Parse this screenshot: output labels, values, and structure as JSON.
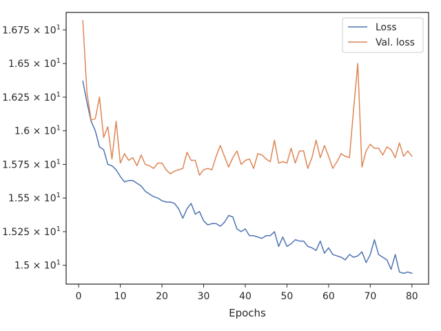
{
  "chart_data": {
    "type": "line",
    "title": "",
    "xlabel": "Epochs",
    "ylabel": "",
    "xlim": [
      -3,
      84
    ],
    "ylim": [
      14.86,
      16.88
    ],
    "x_ticks": [
      0,
      10,
      20,
      30,
      40,
      50,
      60,
      70,
      80
    ],
    "x_tick_labels": [
      "0",
      "10",
      "20",
      "30",
      "40",
      "50",
      "60",
      "70",
      "80"
    ],
    "y_ticks": [
      15.0,
      15.25,
      15.5,
      15.75,
      16.0,
      16.25,
      16.5,
      16.75
    ],
    "y_tick_labels": [
      {
        "mantissa": "1.5",
        "base": "10",
        "exp": "1"
      },
      {
        "mantissa": "1.525",
        "base": "10",
        "exp": "1"
      },
      {
        "mantissa": "1.55",
        "base": "10",
        "exp": "1"
      },
      {
        "mantissa": "1.575",
        "base": "10",
        "exp": "1"
      },
      {
        "mantissa": "1.6",
        "base": "10",
        "exp": "1"
      },
      {
        "mantissa": "1.625",
        "base": "10",
        "exp": "1"
      },
      {
        "mantissa": "1.65",
        "base": "10",
        "exp": "1"
      },
      {
        "mantissa": "1.675",
        "base": "10",
        "exp": "1"
      }
    ],
    "grid": false,
    "legend_position": "top-right",
    "x": [
      1,
      2,
      3,
      4,
      5,
      6,
      7,
      8,
      9,
      10,
      11,
      12,
      13,
      14,
      15,
      16,
      17,
      18,
      19,
      20,
      21,
      22,
      23,
      24,
      25,
      26,
      27,
      28,
      29,
      30,
      31,
      32,
      33,
      34,
      35,
      36,
      37,
      38,
      39,
      40,
      41,
      42,
      43,
      44,
      45,
      46,
      47,
      48,
      49,
      50,
      51,
      52,
      53,
      54,
      55,
      56,
      57,
      58,
      59,
      60,
      61,
      62,
      63,
      64,
      65,
      66,
      67,
      68,
      69,
      70,
      71,
      72,
      73,
      74,
      75,
      76,
      77,
      78,
      79,
      80
    ],
    "series": [
      {
        "name": "Loss",
        "color": "#4c72b0",
        "values": [
          16.37,
          16.21,
          16.07,
          16.0,
          15.88,
          15.86,
          15.75,
          15.74,
          15.71,
          15.66,
          15.62,
          15.63,
          15.63,
          15.61,
          15.59,
          15.55,
          15.53,
          15.51,
          15.5,
          15.48,
          15.47,
          15.47,
          15.46,
          15.42,
          15.35,
          15.42,
          15.46,
          15.38,
          15.4,
          15.33,
          15.3,
          15.31,
          15.31,
          15.29,
          15.32,
          15.37,
          15.36,
          15.27,
          15.25,
          15.27,
          15.22,
          15.22,
          15.21,
          15.2,
          15.22,
          15.22,
          15.25,
          15.14,
          15.21,
          15.14,
          15.16,
          15.19,
          15.18,
          15.18,
          15.14,
          15.13,
          15.11,
          15.18,
          15.09,
          15.13,
          15.08,
          15.07,
          15.06,
          15.04,
          15.08,
          15.06,
          15.07,
          15.1,
          15.02,
          15.08,
          15.19,
          15.08,
          15.06,
          15.04,
          14.97,
          15.08,
          14.95,
          14.94,
          14.95,
          14.94
        ]
      },
      {
        "name": "Val. loss",
        "color": "#dd8452",
        "values": [
          16.82,
          16.28,
          16.08,
          16.09,
          16.25,
          15.95,
          16.03,
          15.79,
          16.07,
          15.76,
          15.83,
          15.78,
          15.8,
          15.74,
          15.82,
          15.75,
          15.74,
          15.72,
          15.76,
          15.76,
          15.71,
          15.68,
          15.7,
          15.71,
          15.72,
          15.84,
          15.78,
          15.78,
          15.67,
          15.71,
          15.72,
          15.71,
          15.81,
          15.89,
          15.81,
          15.73,
          15.8,
          15.85,
          15.75,
          15.78,
          15.79,
          15.72,
          15.83,
          15.82,
          15.79,
          15.77,
          15.93,
          15.76,
          15.77,
          15.76,
          15.87,
          15.76,
          15.85,
          15.85,
          15.72,
          15.8,
          15.93,
          15.8,
          15.89,
          15.81,
          15.72,
          15.77,
          15.83,
          15.81,
          15.8,
          16.16,
          16.5,
          15.73,
          15.85,
          15.9,
          15.87,
          15.87,
          15.82,
          15.88,
          15.86,
          15.8,
          15.91,
          15.81,
          15.85,
          15.81
        ]
      }
    ]
  }
}
